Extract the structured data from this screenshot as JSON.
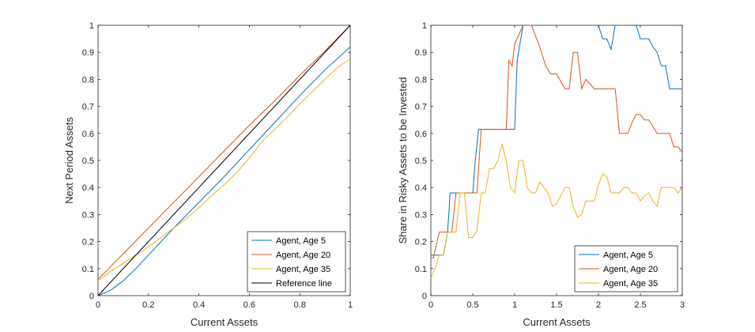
{
  "colors": {
    "age5": "#0072BD",
    "age20": "#D95319",
    "age35": "#EDB120",
    "reference": "#000000",
    "axis": "#262626"
  },
  "chart_data": [
    {
      "type": "line",
      "xlabel": "Current Assets",
      "ylabel": "Next Period Assets",
      "xlim": [
        0,
        1
      ],
      "ylim": [
        0,
        1
      ],
      "xticks": [
        "0",
        "0.2",
        "0.4",
        "0.6",
        "0.8",
        "1"
      ],
      "xtick_values": [
        0,
        0.2,
        0.4,
        0.6,
        0.8,
        1
      ],
      "yticks": [
        "0",
        "0.1",
        "0.2",
        "0.3",
        "0.4",
        "0.5",
        "0.6",
        "0.7",
        "0.8",
        "0.9",
        "1"
      ],
      "ytick_values": [
        0,
        0.1,
        0.2,
        0.3,
        0.4,
        0.5,
        0.6,
        0.7,
        0.8,
        0.9,
        1
      ],
      "grid": false,
      "legend_position": "bottom-right",
      "series": [
        {
          "name": "Agent, Age 5",
          "color_key": "age5",
          "x": [
            0,
            0.05,
            0.1,
            0.15,
            0.2,
            0.3,
            0.4,
            0.5,
            0.6,
            0.7,
            0.8,
            0.9,
            1.0
          ],
          "y": [
            0,
            0.02,
            0.055,
            0.1,
            0.15,
            0.25,
            0.345,
            0.44,
            0.54,
            0.64,
            0.74,
            0.835,
            0.92
          ]
        },
        {
          "name": "Agent, Age 20",
          "color_key": "age20",
          "x": [
            0,
            0.1,
            0.2,
            0.3,
            0.4,
            0.5,
            0.6,
            0.7,
            0.8,
            0.9,
            1.0
          ],
          "y": [
            0.06,
            0.155,
            0.25,
            0.345,
            0.44,
            0.535,
            0.63,
            0.72,
            0.815,
            0.905,
            1.0
          ]
        },
        {
          "name": "Agent, Age 35",
          "color_key": "age35",
          "x": [
            0,
            0.05,
            0.1,
            0.15,
            0.2,
            0.25,
            0.3,
            0.35,
            0.4,
            0.45,
            0.5,
            0.55,
            0.6,
            0.65,
            0.7,
            0.75,
            0.8,
            0.85,
            0.9,
            0.95,
            1.0
          ],
          "y": [
            0.055,
            0.09,
            0.12,
            0.15,
            0.18,
            0.215,
            0.25,
            0.285,
            0.325,
            0.37,
            0.41,
            0.455,
            0.51,
            0.57,
            0.615,
            0.66,
            0.71,
            0.755,
            0.8,
            0.845,
            0.875
          ]
        },
        {
          "name": "Reference line",
          "color_key": "reference",
          "x": [
            0,
            1
          ],
          "y": [
            0,
            1
          ]
        }
      ]
    },
    {
      "type": "line",
      "xlabel": "Current Assets",
      "ylabel": "Share in Risky Assets to be Invested",
      "xlim": [
        0,
        3
      ],
      "ylim": [
        0,
        1
      ],
      "xticks": [
        "0",
        "0.5",
        "1",
        "1.5",
        "2",
        "2.5",
        "3"
      ],
      "xtick_values": [
        0,
        0.5,
        1,
        1.5,
        2,
        2.5,
        3
      ],
      "yticks": [
        "0",
        "0.1",
        "0.2",
        "0.3",
        "0.4",
        "0.5",
        "0.6",
        "0.7",
        "0.8",
        "0.9",
        "1"
      ],
      "ytick_values": [
        0,
        0.1,
        0.2,
        0.3,
        0.4,
        0.5,
        0.6,
        0.7,
        0.8,
        0.9,
        1
      ],
      "grid": false,
      "legend_position": "bottom-right",
      "series": [
        {
          "name": "Agent, Age 5",
          "color_key": "age5",
          "x": [
            0,
            0.05,
            0.1,
            0.15,
            0.2,
            0.23,
            0.3,
            0.5,
            0.53,
            0.57,
            0.6,
            1.0,
            1.03,
            1.1,
            1.5,
            2.0,
            2.05,
            2.1,
            2.15,
            2.2,
            2.25,
            2.3,
            2.45,
            2.5,
            2.55,
            2.6,
            2.65,
            2.7,
            2.75,
            2.8,
            2.85,
            2.9,
            3.0
          ],
          "y": [
            0.15,
            0.15,
            0.15,
            0.15,
            0.235,
            0.38,
            0.38,
            0.38,
            0.5,
            0.615,
            0.615,
            0.615,
            0.87,
            1.0,
            1.0,
            1.0,
            0.95,
            0.95,
            0.91,
            1.0,
            1.0,
            1.0,
            1.0,
            0.95,
            0.95,
            0.95,
            0.92,
            0.9,
            0.85,
            0.85,
            0.765,
            0.765,
            0.765
          ]
        },
        {
          "name": "Agent, Age 20",
          "color_key": "age20",
          "x": [
            0,
            0.03,
            0.1,
            0.25,
            0.3,
            0.35,
            0.55,
            0.6,
            0.9,
            0.93,
            0.97,
            1.0,
            1.1,
            1.2,
            1.3,
            1.37,
            1.43,
            1.5,
            1.6,
            1.65,
            1.7,
            1.75,
            1.8,
            1.85,
            1.95,
            2.0,
            2.2,
            2.25,
            2.35,
            2.4,
            2.45,
            2.5,
            2.55,
            2.6,
            2.7,
            2.75,
            2.85,
            2.9,
            2.95,
            3.0
          ],
          "y": [
            0.14,
            0.14,
            0.235,
            0.235,
            0.38,
            0.38,
            0.38,
            0.615,
            0.615,
            0.87,
            0.85,
            0.93,
            1.0,
            1.0,
            0.92,
            0.85,
            0.82,
            0.82,
            0.765,
            0.765,
            0.9,
            0.9,
            0.765,
            0.8,
            0.765,
            0.765,
            0.765,
            0.6,
            0.6,
            0.64,
            0.67,
            0.67,
            0.65,
            0.65,
            0.6,
            0.6,
            0.6,
            0.55,
            0.55,
            0.53
          ]
        },
        {
          "name": "Agent, Age 35",
          "color_key": "age35",
          "x": [
            0,
            0.05,
            0.1,
            0.15,
            0.2,
            0.25,
            0.3,
            0.35,
            0.4,
            0.45,
            0.5,
            0.55,
            0.6,
            0.65,
            0.7,
            0.75,
            0.8,
            0.85,
            0.9,
            0.95,
            1.0,
            1.05,
            1.1,
            1.15,
            1.2,
            1.25,
            1.3,
            1.35,
            1.4,
            1.45,
            1.5,
            1.55,
            1.6,
            1.65,
            1.7,
            1.75,
            1.8,
            1.85,
            1.9,
            1.95,
            2.0,
            2.05,
            2.1,
            2.15,
            2.2,
            2.25,
            2.3,
            2.35,
            2.4,
            2.45,
            2.5,
            2.55,
            2.6,
            2.65,
            2.7,
            2.75,
            2.8,
            2.85,
            2.9,
            2.95,
            3.0
          ],
          "y": [
            0.065,
            0.1,
            0.15,
            0.15,
            0.235,
            0.235,
            0.235,
            0.38,
            0.38,
            0.215,
            0.215,
            0.24,
            0.38,
            0.38,
            0.47,
            0.47,
            0.5,
            0.56,
            0.5,
            0.4,
            0.38,
            0.5,
            0.5,
            0.4,
            0.38,
            0.38,
            0.42,
            0.4,
            0.38,
            0.33,
            0.34,
            0.37,
            0.4,
            0.4,
            0.33,
            0.29,
            0.3,
            0.35,
            0.35,
            0.35,
            0.41,
            0.45,
            0.44,
            0.38,
            0.38,
            0.38,
            0.4,
            0.4,
            0.38,
            0.38,
            0.35,
            0.37,
            0.38,
            0.35,
            0.33,
            0.4,
            0.4,
            0.4,
            0.4,
            0.38,
            0.4
          ]
        }
      ]
    }
  ]
}
